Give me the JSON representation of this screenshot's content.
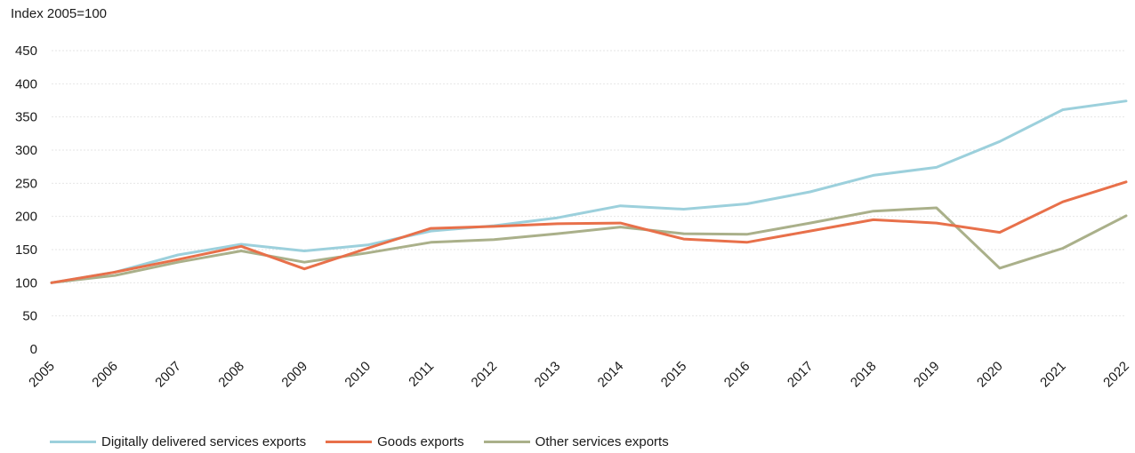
{
  "chart_data": {
    "type": "line",
    "unit_label": "Index 2005=100",
    "x": [
      "2005",
      "2006",
      "2007",
      "2008",
      "2009",
      "2010",
      "2011",
      "2012",
      "2013",
      "2014",
      "2015",
      "2016",
      "2017",
      "2018",
      "2019",
      "2020",
      "2021",
      "2022"
    ],
    "ylim": [
      0,
      450
    ],
    "yticks": [
      0,
      50,
      100,
      150,
      200,
      250,
      300,
      350,
      400,
      450
    ],
    "grid": true,
    "legend_position": "bottom-left",
    "series": [
      {
        "name": "Digitally delivered services exports",
        "color": "#9cd0dc",
        "values": [
          100,
          116,
          142,
          158,
          148,
          157,
          178,
          186,
          198,
          216,
          211,
          219,
          237,
          262,
          274,
          313,
          361,
          374
        ]
      },
      {
        "name": "Goods exports",
        "color": "#e8704a",
        "values": [
          100,
          116,
          135,
          155,
          121,
          152,
          182,
          185,
          189,
          190,
          166,
          161,
          178,
          195,
          190,
          176,
          222,
          252
        ]
      },
      {
        "name": "Other services exports",
        "color": "#aab08a",
        "values": [
          100,
          111,
          131,
          148,
          131,
          145,
          161,
          165,
          174,
          184,
          174,
          173,
          190,
          208,
          213,
          122,
          152,
          201
        ]
      }
    ]
  }
}
